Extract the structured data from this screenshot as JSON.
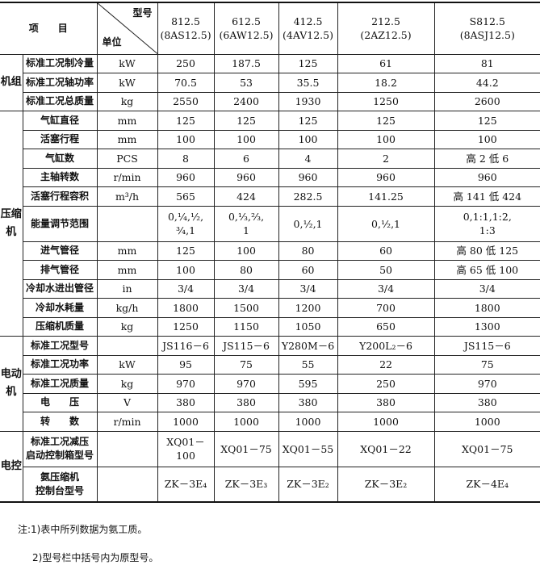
{
  "header": {
    "item_label": "项　　目",
    "model_label": "型号",
    "unit_label": "单位",
    "models": [
      {
        "name": "812.5",
        "orig": "(8AS12.5)"
      },
      {
        "name": "612.5",
        "orig": "(6AW12.5)"
      },
      {
        "name": "412.5",
        "orig": "(4AV12.5)"
      },
      {
        "name": "212.5",
        "orig": "(2AZ12.5)"
      },
      {
        "name": "S812.5",
        "orig": "(8ASJ12.5)"
      }
    ]
  },
  "groups": [
    {
      "label": "机组",
      "rows": [
        {
          "item": "标准工况制冷量",
          "unit": "kW",
          "values": [
            "250",
            "187.5",
            "125",
            "61",
            "81"
          ]
        },
        {
          "item": "标准工况轴功率",
          "unit": "kW",
          "values": [
            "70.5",
            "53",
            "35.5",
            "18.2",
            "44.2"
          ]
        },
        {
          "item": "标准工况总质量",
          "unit": "kg",
          "values": [
            "2550",
            "2400",
            "1930",
            "1250",
            "2600"
          ]
        }
      ]
    },
    {
      "label": "压缩机",
      "rows": [
        {
          "item": "气缸直径",
          "unit": "mm",
          "values": [
            "125",
            "125",
            "125",
            "125",
            "125"
          ]
        },
        {
          "item": "活塞行程",
          "unit": "mm",
          "values": [
            "100",
            "100",
            "100",
            "100",
            "100"
          ]
        },
        {
          "item": "气缸数",
          "unit": "PCS",
          "values": [
            "8",
            "6",
            "4",
            "2",
            "高 2 低 6"
          ]
        },
        {
          "item": "主轴转数",
          "unit": "r/min",
          "values": [
            "960",
            "960",
            "960",
            "960",
            "960"
          ]
        },
        {
          "item": "活塞行程容积",
          "unit": "m³/h",
          "values": [
            "565",
            "424",
            "282.5",
            "141.25",
            "高 141 低 424"
          ]
        },
        {
          "item": "能量调节范围",
          "unit": "",
          "values": [
            "0,¼,½,\n¾,1",
            "0,⅓,⅔,\n1",
            "0,½,1",
            "0,½,1",
            "0,1:1,1:2,\n1:3"
          ]
        },
        {
          "item": "进气管径",
          "unit": "mm",
          "values": [
            "125",
            "100",
            "80",
            "60",
            "高 80 低 125"
          ]
        },
        {
          "item": "排气管径",
          "unit": "mm",
          "values": [
            "100",
            "80",
            "60",
            "50",
            "高 65 低 100"
          ]
        },
        {
          "item": "冷却水进出管径",
          "unit": "in",
          "values": [
            "3/4",
            "3/4",
            "3/4",
            "3/4",
            "3/4"
          ]
        },
        {
          "item": "冷却水耗量",
          "unit": "kg/h",
          "values": [
            "1800",
            "1500",
            "1200",
            "700",
            "1800"
          ]
        },
        {
          "item": "压缩机质量",
          "unit": "kg",
          "values": [
            "1250",
            "1150",
            "1050",
            "650",
            "1300"
          ]
        }
      ]
    },
    {
      "label": "电动机",
      "rows": [
        {
          "item": "标准工况型号",
          "unit": "",
          "values": [
            "JS116－6",
            "JS115－6",
            "Y280M－6",
            "Y200L₂－6",
            "JS115－6"
          ]
        },
        {
          "item": "标准工况功率",
          "unit": "kW",
          "values": [
            "95",
            "75",
            "55",
            "22",
            "75"
          ]
        },
        {
          "item": "标准工况质量",
          "unit": "kg",
          "values": [
            "970",
            "970",
            "595",
            "250",
            "970"
          ]
        },
        {
          "item": "电　　压",
          "unit": "V",
          "values": [
            "380",
            "380",
            "380",
            "380",
            "380"
          ]
        },
        {
          "item": "转　　数",
          "unit": "r/min",
          "values": [
            "1000",
            "1000",
            "1000",
            "1000",
            "1000"
          ]
        }
      ]
    },
    {
      "label": "电控",
      "rows": [
        {
          "item": "标准工况减压\n启动控制箱型号",
          "unit": "",
          "values": [
            "XQ01－100",
            "XQ01－75",
            "XQ01－55",
            "XQ01－22",
            "XQ01－75"
          ]
        },
        {
          "item": "氨压缩机\n控制台型号",
          "unit": "",
          "values": [
            "ZK－3E₄",
            "ZK－3E₃",
            "ZK－3E₂",
            "ZK－3E₂",
            "ZK－4E₄"
          ]
        }
      ]
    }
  ],
  "notes": [
    "注:1)表中所列数据为氨工质。",
    "2)型号栏中括号内为原型号。"
  ]
}
